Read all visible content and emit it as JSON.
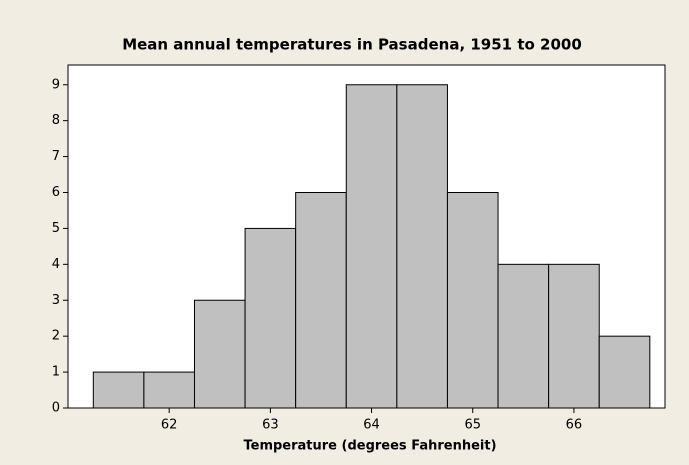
{
  "chart_data": {
    "type": "histogram",
    "title": "Mean annual temperatures in Pasadena, 1951 to 2000",
    "x_label": "Temperature (degrees Fahrenheit)",
    "bins": [
      61.25,
      61.75,
      62.25,
      62.75,
      63.25,
      63.75,
      64.25,
      64.75,
      65.25,
      65.75,
      66.25,
      66.75
    ],
    "values": [
      1,
      1,
      3,
      5,
      6,
      9,
      9,
      6,
      4,
      4,
      2
    ],
    "color": "#c0c0c0",
    "xlim": [
      61.0,
      66.9
    ],
    "xticks": [
      62,
      63,
      64,
      65,
      66
    ],
    "ylim": [
      0,
      9.55
    ],
    "yticks": [
      0,
      1,
      2,
      3,
      4,
      5,
      6,
      7,
      8,
      9
    ]
  }
}
